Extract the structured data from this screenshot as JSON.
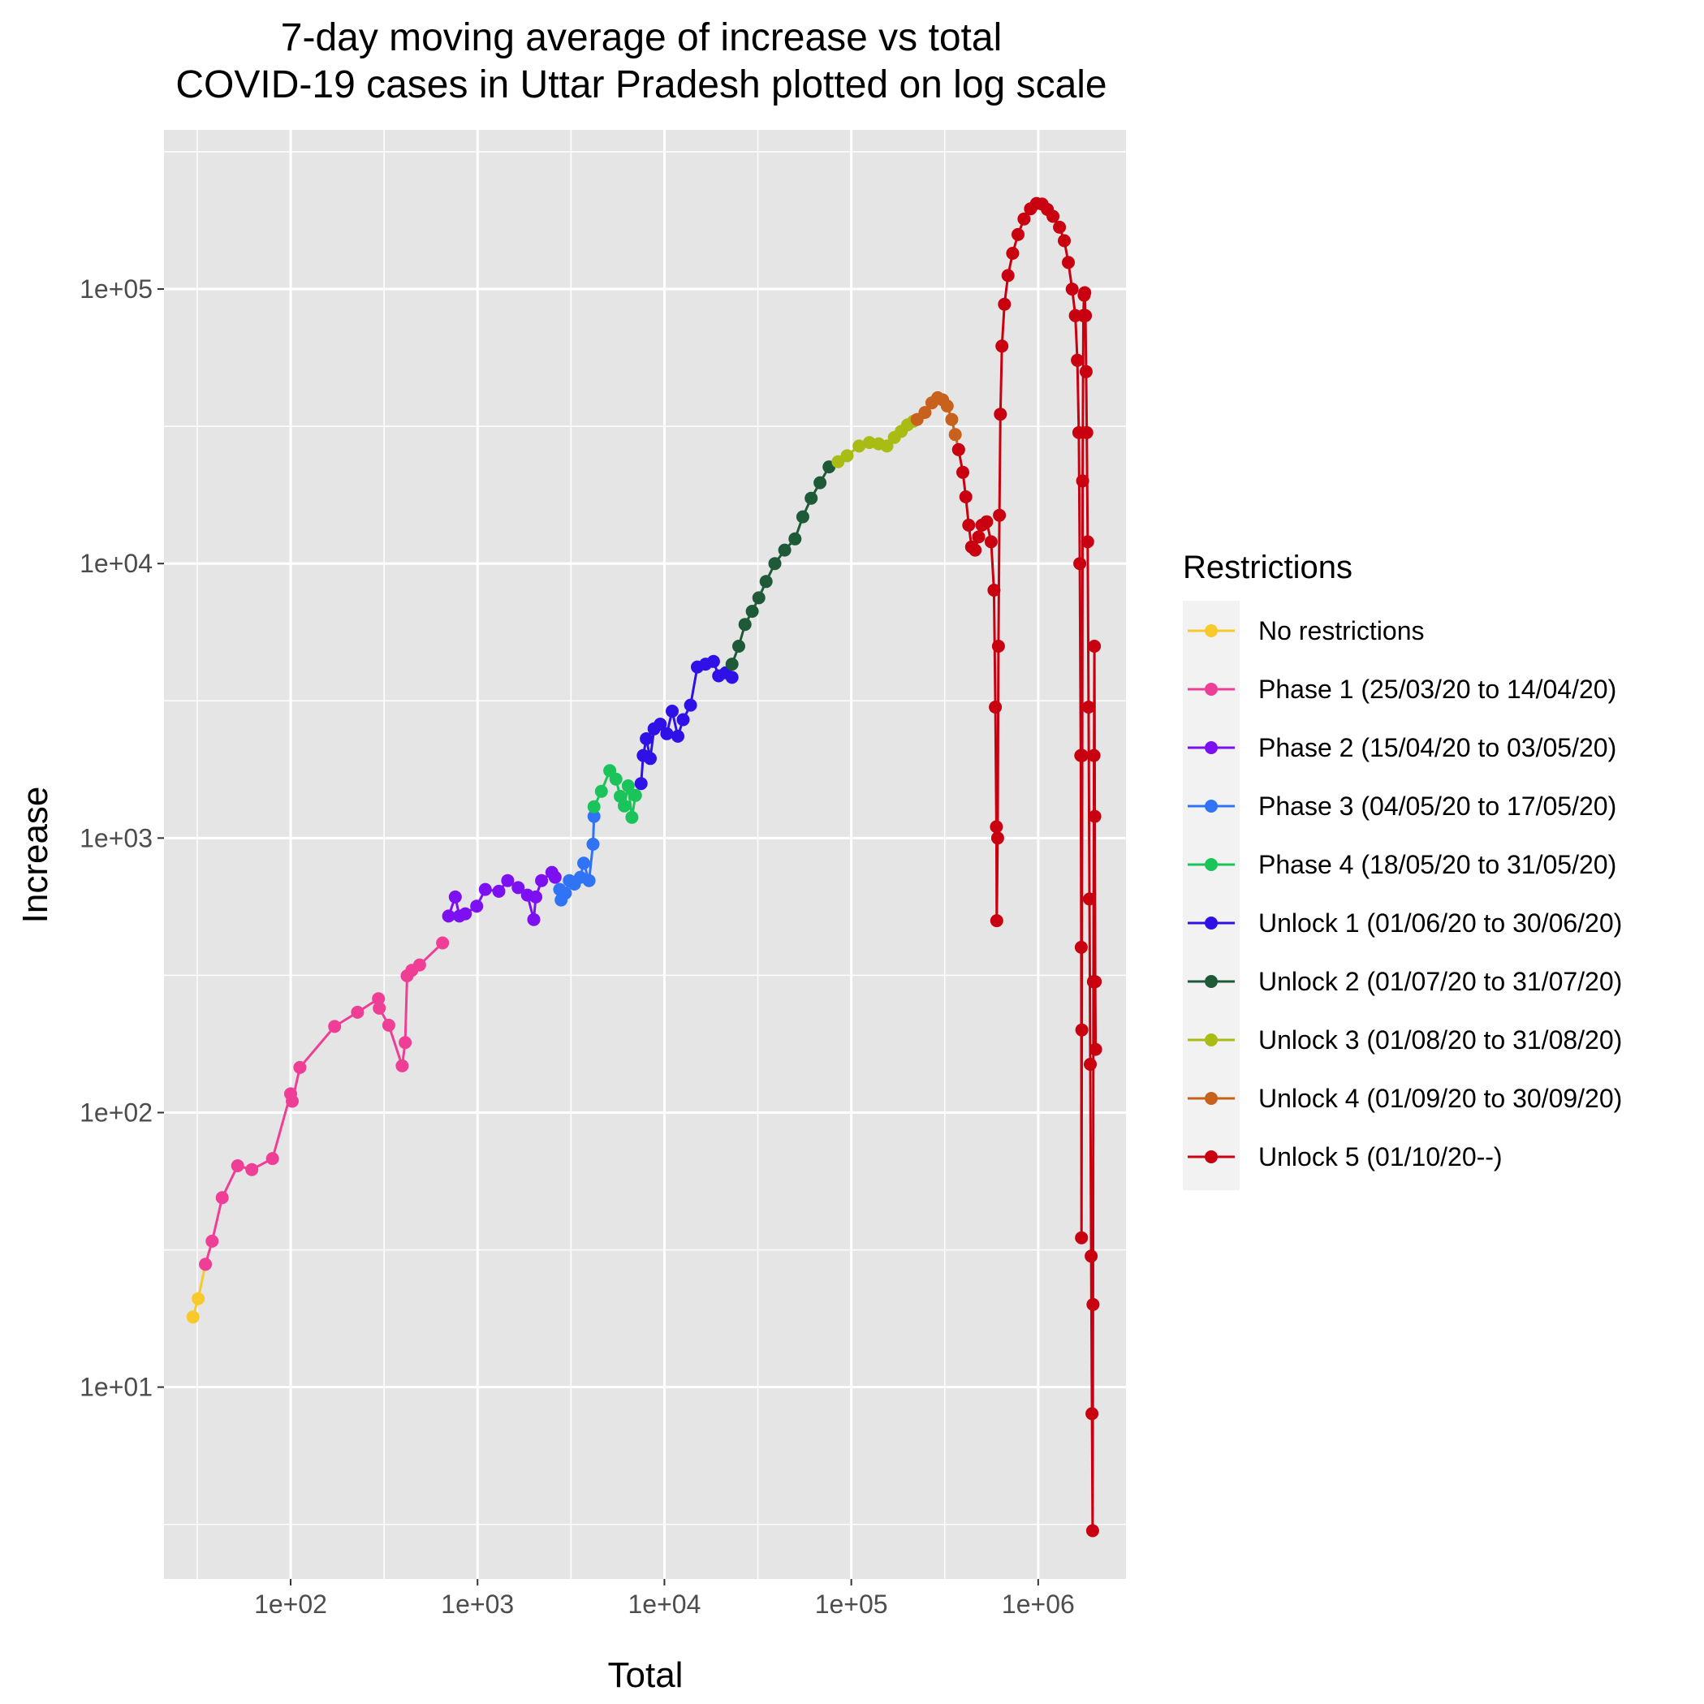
{
  "chart_data": {
    "type": "line",
    "title": "7-day moving average of increase vs total\nCOVID-19 cases in Uttar Pradesh plotted on log scale",
    "title_lines": [
      "7-day moving average of increase vs total",
      "COVID-19 cases in Uttar Pradesh plotted on log scale"
    ],
    "xlabel": "Total",
    "ylabel": "Increase",
    "x_scale": "log10",
    "y_scale": "log10",
    "xlim": [
      21,
      2950000
    ],
    "ylim": [
      2.0,
      380000
    ],
    "x_ticks": [
      {
        "value": 100,
        "label": "1e+02"
      },
      {
        "value": 1000,
        "label": "1e+03"
      },
      {
        "value": 10000,
        "label": "1e+04"
      },
      {
        "value": 100000,
        "label": "1e+05"
      },
      {
        "value": 1000000,
        "label": "1e+06"
      }
    ],
    "y_ticks": [
      {
        "value": 10,
        "label": "1e+01"
      },
      {
        "value": 100,
        "label": "1e+02"
      },
      {
        "value": 1000,
        "label": "1e+03"
      },
      {
        "value": 10000,
        "label": "1e+04"
      },
      {
        "value": 100000,
        "label": "1e+05"
      }
    ],
    "grid": true,
    "background": "#e5e5e5",
    "legend_title": "Restrictions",
    "legend_position": "right",
    "series": [
      {
        "name": "No restrictions",
        "color": "#f8c92c",
        "points": [
          [
            30,
            18
          ],
          [
            32,
            21
          ],
          [
            35,
            28
          ]
        ]
      },
      {
        "name": "Phase 1 (25/03/20 to 14/04/20)",
        "color": "#ef3e96",
        "points": [
          [
            35,
            28
          ],
          [
            38,
            34
          ],
          [
            43,
            49
          ],
          [
            52,
            64
          ],
          [
            62,
            62
          ],
          [
            80,
            68
          ],
          [
            100,
            117
          ],
          [
            102,
            110
          ],
          [
            112,
            146
          ],
          [
            172,
            206
          ],
          [
            228,
            232
          ],
          [
            295,
            260
          ],
          [
            298,
            240
          ],
          [
            335,
            208
          ],
          [
            395,
            148
          ],
          [
            410,
            180
          ],
          [
            420,
            315
          ],
          [
            445,
            330
          ],
          [
            490,
            345
          ],
          [
            650,
            415
          ]
        ]
      },
      {
        "name": "Phase 2 (15/04/20 to 03/05/20)",
        "color": "#7d10f0",
        "points": [
          [
            700,
            520
          ],
          [
            760,
            610
          ],
          [
            800,
            520
          ],
          [
            860,
            530
          ],
          [
            990,
            565
          ],
          [
            1100,
            650
          ],
          [
            1300,
            640
          ],
          [
            1450,
            700
          ],
          [
            1650,
            660
          ],
          [
            1850,
            620
          ],
          [
            2000,
            505
          ],
          [
            2050,
            610
          ],
          [
            2200,
            700
          ],
          [
            2500,
            750
          ],
          [
            2600,
            720
          ]
        ]
      },
      {
        "name": "Phase 3 (04/05/20 to 17/05/20)",
        "color": "#3173f5",
        "points": [
          [
            2750,
            650
          ],
          [
            2800,
            595
          ],
          [
            2950,
            630
          ],
          [
            3100,
            700
          ],
          [
            3300,
            680
          ],
          [
            3550,
            720
          ],
          [
            3700,
            810
          ],
          [
            3950,
            700
          ],
          [
            4150,
            950
          ],
          [
            4200,
            1200
          ]
        ]
      },
      {
        "name": "Phase 4 (18/05/20 to 31/05/20)",
        "color": "#1bc45a",
        "points": [
          [
            4200,
            1300
          ],
          [
            4600,
            1480
          ],
          [
            5100,
            1760
          ],
          [
            5500,
            1640
          ],
          [
            5800,
            1420
          ],
          [
            6100,
            1310
          ],
          [
            6400,
            1550
          ],
          [
            6700,
            1190
          ],
          [
            7000,
            1430
          ]
        ]
      },
      {
        "name": "Unlock 1 (01/06/20 to 30/06/20)",
        "color": "#2f10e6",
        "points": [
          [
            7500,
            1580
          ],
          [
            7700,
            2000
          ],
          [
            8000,
            2300
          ],
          [
            8400,
            1950
          ],
          [
            8800,
            2500
          ],
          [
            9500,
            2600
          ],
          [
            10300,
            2400
          ],
          [
            11000,
            2900
          ],
          [
            11800,
            2350
          ],
          [
            12600,
            2700
          ],
          [
            13800,
            3050
          ],
          [
            15000,
            4200
          ],
          [
            16600,
            4300
          ],
          [
            18300,
            4400
          ],
          [
            19500,
            3900
          ],
          [
            21300,
            4000
          ],
          [
            23000,
            3850
          ]
        ]
      },
      {
        "name": "Unlock 2 (01/07/20 to 31/07/20)",
        "color": "#1e5a37",
        "points": [
          [
            23000,
            4300
          ],
          [
            25000,
            5000
          ],
          [
            27000,
            6000
          ],
          [
            29500,
            6700
          ],
          [
            32000,
            7500
          ],
          [
            35000,
            8600
          ],
          [
            39000,
            10000
          ],
          [
            44000,
            11200
          ],
          [
            50000,
            12300
          ],
          [
            55000,
            14800
          ],
          [
            61000,
            17300
          ],
          [
            68000,
            19700
          ],
          [
            76000,
            22500
          ]
        ]
      },
      {
        "name": "Unlock 3 (01/08/20 to 31/08/20)",
        "color": "#a8bc13",
        "points": [
          [
            85000,
            23500
          ],
          [
            95000,
            24700
          ],
          [
            110000,
            26800
          ],
          [
            125000,
            27600
          ],
          [
            140000,
            27300
          ],
          [
            155000,
            26800
          ],
          [
            170000,
            28800
          ],
          [
            185000,
            30300
          ],
          [
            200000,
            32000
          ],
          [
            215000,
            33000
          ]
        ]
      },
      {
        "name": "Unlock 4 (01/09/20 to 30/09/20)",
        "color": "#c8611c",
        "points": [
          [
            225000,
            33500
          ],
          [
            248000,
            35500
          ],
          [
            270000,
            38500
          ],
          [
            290000,
            40200
          ],
          [
            308000,
            39500
          ],
          [
            326000,
            37500
          ],
          [
            345000,
            33500
          ],
          [
            360000,
            29500
          ],
          [
            375000,
            26000
          ]
        ]
      },
      {
        "name": "Unlock 5 (01/10/20--)",
        "color": "#c8000f",
        "points": [
          [
            375000,
            26000
          ],
          [
            395000,
            21500
          ],
          [
            410000,
            17500
          ],
          [
            425000,
            13800
          ],
          [
            440000,
            11500
          ],
          [
            460000,
            11200
          ],
          [
            480000,
            12500
          ],
          [
            500000,
            13800
          ],
          [
            530000,
            14200
          ],
          [
            560000,
            12000
          ],
          [
            580000,
            8000
          ],
          [
            590000,
            3000
          ],
          [
            598000,
            1100
          ],
          [
            600000,
            500
          ],
          [
            607000,
            1000
          ],
          [
            613000,
            5000
          ],
          [
            620000,
            15000
          ],
          [
            628000,
            35000
          ],
          [
            640000,
            62000
          ],
          [
            660000,
            88000
          ],
          [
            690000,
            112000
          ],
          [
            730000,
            135000
          ],
          [
            780000,
            158000
          ],
          [
            840000,
            180000
          ],
          [
            910000,
            196000
          ],
          [
            980000,
            205000
          ],
          [
            1050000,
            204000
          ],
          [
            1120000,
            195000
          ],
          [
            1200000,
            184000
          ],
          [
            1300000,
            168000
          ],
          [
            1380000,
            150000
          ],
          [
            1450000,
            125000
          ],
          [
            1520000,
            100000
          ],
          [
            1580000,
            80000
          ],
          [
            1620000,
            55000
          ],
          [
            1650000,
            30000
          ],
          [
            1670000,
            10000
          ],
          [
            1690000,
            2000
          ],
          [
            1700000,
            400
          ],
          [
            1705000,
            35
          ],
          [
            1712000,
            200
          ],
          [
            1720000,
            2000
          ],
          [
            1730000,
            20000
          ],
          [
            1745000,
            80000
          ],
          [
            1760000,
            95000
          ],
          [
            1775000,
            97000
          ],
          [
            1790000,
            80000
          ],
          [
            1805000,
            50000
          ],
          [
            1820000,
            30000
          ],
          [
            1840000,
            12000
          ],
          [
            1860000,
            3000
          ],
          [
            1880000,
            600
          ],
          [
            1900000,
            150
          ],
          [
            1920000,
            30
          ],
          [
            1940000,
            8
          ],
          [
            1955000,
            3
          ],
          [
            1965000,
            20
          ],
          [
            1975000,
            300
          ],
          [
            1990000,
            2000
          ],
          [
            2000000,
            5000
          ],
          [
            2010000,
            1200
          ],
          [
            2020000,
            300
          ],
          [
            2030000,
            170
          ]
        ]
      }
    ]
  }
}
